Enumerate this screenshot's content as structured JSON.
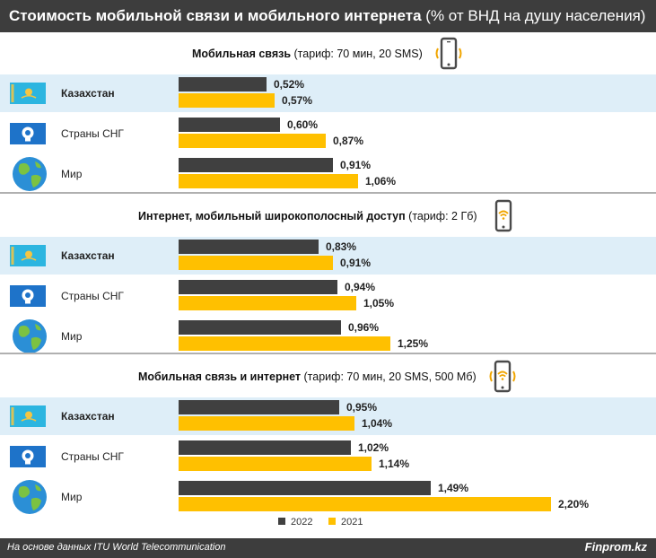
{
  "title": {
    "bold": "Стоимость мобильной связи и мобильного интернета",
    "normal": "(% от ВНД на душу населения)"
  },
  "chart_data": [
    {
      "type": "bar",
      "orientation": "horizontal",
      "title_bold": "Мобильная связь",
      "title_normal": "(тариф: 70 мин, 20 SMS)",
      "icon": "phone-vibrate-icon",
      "categories": [
        "Казахстан",
        "Страны СНГ",
        "Мир"
      ],
      "series": [
        {
          "name": "2022",
          "values": [
            0.52,
            0.6,
            0.91
          ],
          "labels": [
            "0,52%",
            "0,60%",
            "0,91%"
          ]
        },
        {
          "name": "2021",
          "values": [
            0.57,
            0.87,
            1.06
          ],
          "labels": [
            "0,57%",
            "0,87%",
            "1,06%"
          ]
        }
      ]
    },
    {
      "type": "bar",
      "orientation": "horizontal",
      "title_bold": "Интернет, мобильный широкополосный доступ",
      "title_normal": "(тариф: 2 Гб)",
      "icon": "phone-wifi-icon",
      "categories": [
        "Казахстан",
        "Страны СНГ",
        "Мир"
      ],
      "series": [
        {
          "name": "2022",
          "values": [
            0.83,
            0.94,
            0.96
          ],
          "labels": [
            "0,83%",
            "0,94%",
            "0,96%"
          ]
        },
        {
          "name": "2021",
          "values": [
            0.91,
            1.05,
            1.25
          ],
          "labels": [
            "0,91%",
            "1,05%",
            "1,25%"
          ]
        }
      ]
    },
    {
      "type": "bar",
      "orientation": "horizontal",
      "title_bold": "Мобильная связь и интернет",
      "title_normal": "(тариф: 70 мин, 20 SMS, 500 Мб)",
      "icon": "phone-wifi-vibrate-icon",
      "categories": [
        "Казахстан",
        "Страны СНГ",
        "Мир"
      ],
      "series": [
        {
          "name": "2022",
          "values": [
            0.95,
            1.02,
            1.49
          ],
          "labels": [
            "0,95%",
            "1,02%",
            "1,49%"
          ]
        },
        {
          "name": "2021",
          "values": [
            1.04,
            1.14,
            2.2
          ],
          "labels": [
            "1,04%",
            "1,14%",
            "2,20%"
          ]
        }
      ]
    }
  ],
  "legend": [
    {
      "label": "2022",
      "color": "#404040"
    },
    {
      "label": "2021",
      "color": "#ffc000"
    }
  ],
  "colors": {
    "series_2022": "#404040",
    "series_2021": "#ffc000",
    "kz_row_bg": "#deeef8",
    "header_bg": "#3d3d3d"
  },
  "countries": [
    {
      "name": "Казахстан",
      "flag": "kazakhstan-flag-icon",
      "bold": true
    },
    {
      "name": "Страны СНГ",
      "flag": "cis-flag-icon",
      "bold": false
    },
    {
      "name": "Мир",
      "flag": "globe-icon",
      "bold": false
    }
  ],
  "footer": {
    "source": "На основе данных ITU World Telecommunication",
    "brand": "Finprom.kz"
  }
}
